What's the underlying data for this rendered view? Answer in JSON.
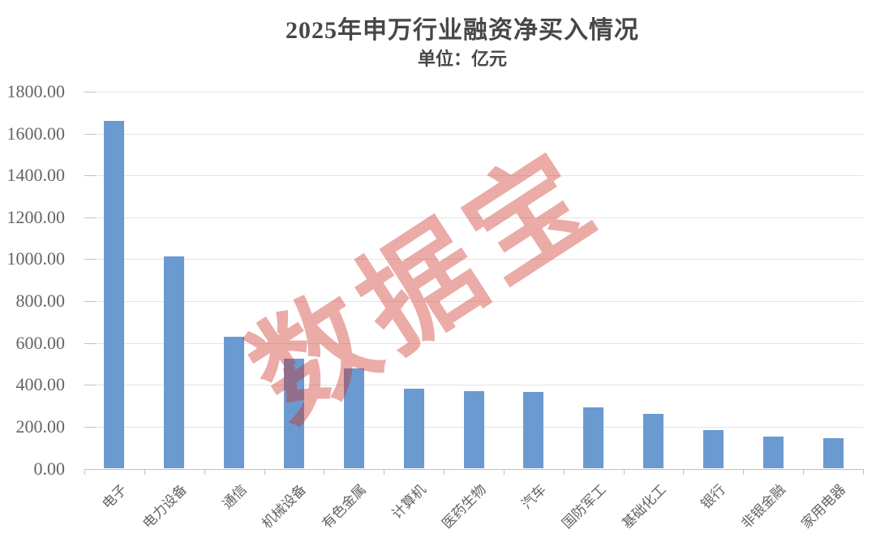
{
  "title": "2025年申万行业融资净买入情况",
  "subtitle": "单位：亿元",
  "watermark_text": "数据宝",
  "colors": {
    "bar": "#6b9ad1",
    "gridline": "#e4e4e4",
    "axis": "#c2c2c2",
    "tick": "#c2c2c2",
    "axis_label": "#646464",
    "title_text": "#474747",
    "watermark": "rgba(205,45,35,0.40)"
  },
  "chart_data": {
    "type": "bar",
    "title": "2025年申万行业融资净买入情况",
    "subtitle": "单位：亿元",
    "unit": "亿元",
    "categories": [
      "电子",
      "电力设备",
      "通信",
      "机械设备",
      "有色金属",
      "计算机",
      "医药生物",
      "汽车",
      "国防军工",
      "基础化工",
      "银行",
      "非银金融",
      "家用电器"
    ],
    "values": [
      1661,
      1012,
      630,
      524,
      478,
      383,
      372,
      368,
      293,
      260,
      184,
      154,
      145
    ],
    "ylim": [
      0,
      1800
    ],
    "ytick_step": 200,
    "ytick_labels": [
      "0.00",
      "200.00",
      "400.00",
      "600.00",
      "800.00",
      "1000.00",
      "1200.00",
      "1400.00",
      "1600.00",
      "1800.00"
    ],
    "grid": true,
    "legend": false,
    "x_label_rotation_deg": -45
  }
}
